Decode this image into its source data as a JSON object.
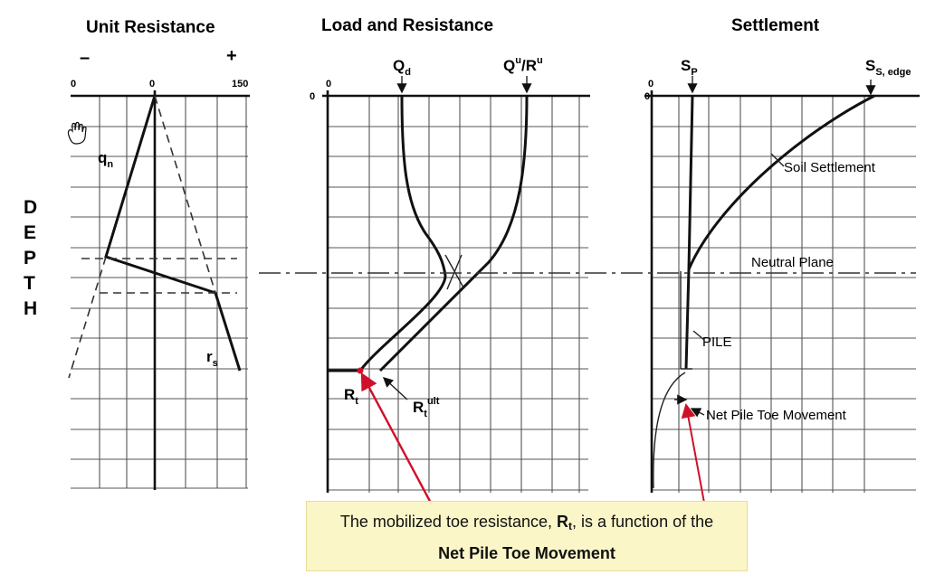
{
  "panels": {
    "unit_resistance": {
      "title": "Unit Resistance",
      "sign_minus": "–",
      "sign_plus": "+",
      "tick_left": "0",
      "tick_center": "0",
      "tick_right": "150",
      "label_qn": "q",
      "label_qn_sub": "n",
      "label_rs": "r",
      "label_rs_sub": "s"
    },
    "load_resistance": {
      "title": "Load and Resistance",
      "tick_zero": "0",
      "depth_zero": "0",
      "label_qd": "Q",
      "label_qd_sub": "d",
      "label_qu": "Q",
      "label_qu_sup": "u",
      "label_ru": "/R",
      "label_ru_sup": "u",
      "label_rt": "R",
      "label_rt_sub": "t",
      "label_rtult": "R",
      "label_rtult_sub": "t",
      "label_rtult_sup": "ult"
    },
    "settlement": {
      "title": "Settlement",
      "tick_zero": "0",
      "depth_zero": "0",
      "label_sp": "S",
      "label_sp_sub": "P",
      "label_ss": "S",
      "label_ss_sub": "S, edge",
      "soil_settlement": "Soil Settlement",
      "neutral_plane": "Neutral Plane",
      "pile": "PILE",
      "net_toe_movement": "Net Pile Toe Movement"
    }
  },
  "depth_axis": [
    "D",
    "E",
    "P",
    "T",
    "H"
  ],
  "callout": {
    "line1_pre": "The mobilized toe resistance, ",
    "line1_sym": "R",
    "line1_sym_sub": "t",
    "line1_post": ", is a function of the",
    "line2": "Net Pile Toe Movement"
  },
  "colors": {
    "arrow_red": "#d0102a",
    "callout_bg": "#fbf6c8"
  }
}
